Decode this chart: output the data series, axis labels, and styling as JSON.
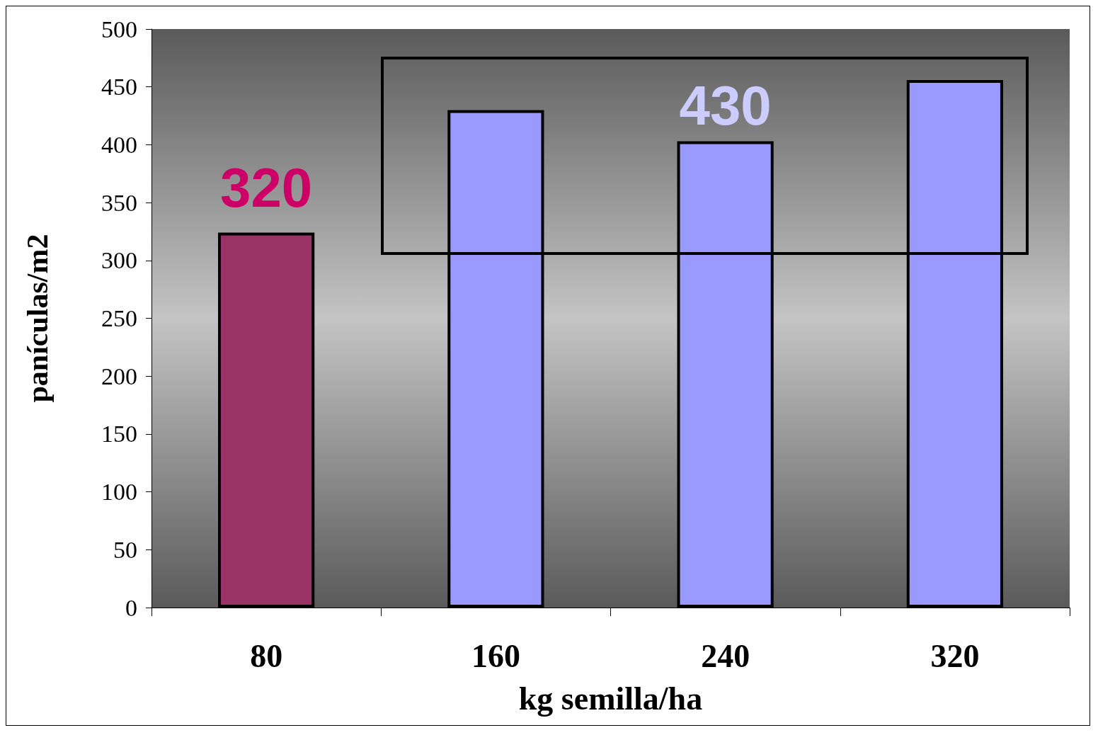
{
  "chart_data": {
    "type": "bar",
    "xlabel": "kg semilla/ha",
    "ylabel": "panículas/m2",
    "categories": [
      "80",
      "160",
      "240",
      "320"
    ],
    "values": [
      324,
      430,
      403,
      456
    ],
    "colors": [
      "#993366",
      "#9999ff",
      "#9999ff",
      "#9999ff"
    ],
    "ylim": [
      0,
      500
    ],
    "yticks": [
      0,
      50,
      100,
      150,
      200,
      250,
      300,
      350,
      400,
      450,
      500
    ],
    "annotations": [
      "320",
      "430"
    ],
    "grid": false
  }
}
